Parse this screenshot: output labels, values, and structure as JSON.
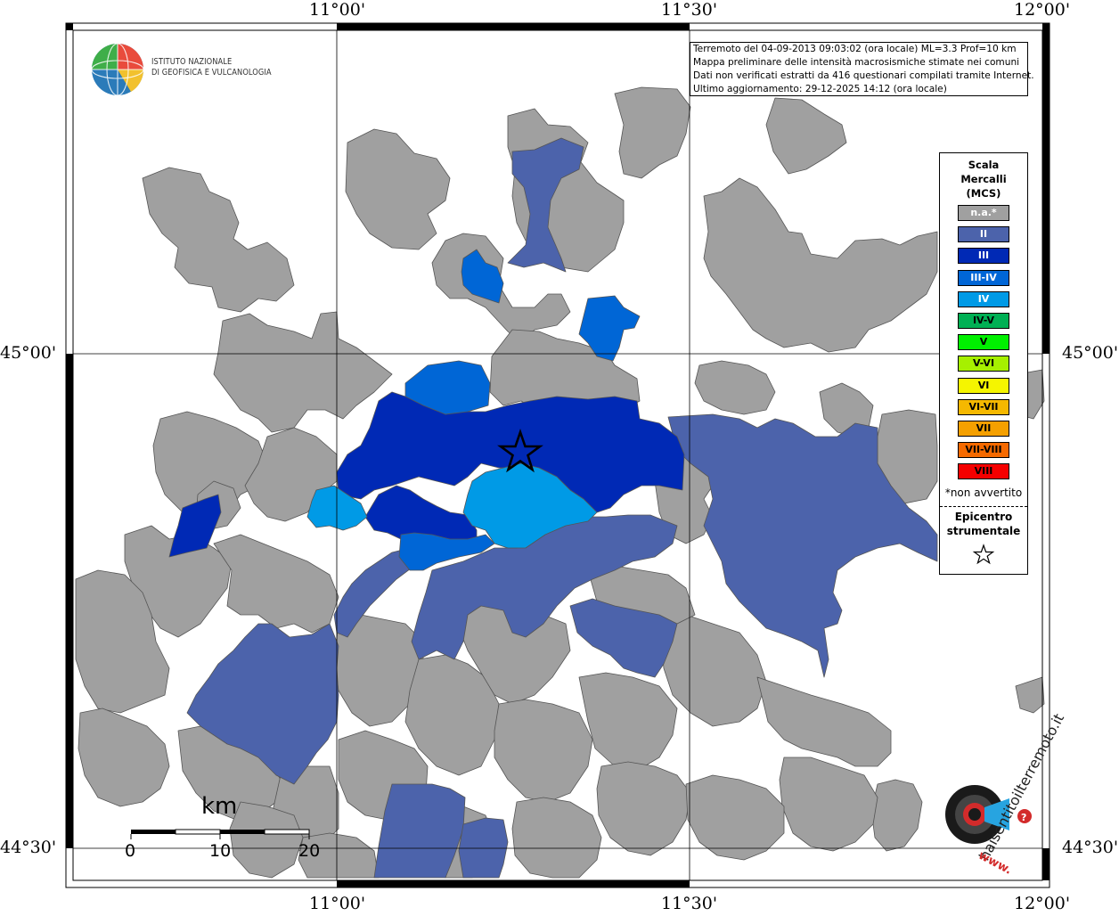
{
  "coords": {
    "top": [
      "11°00'",
      "11°30'",
      "12°00'"
    ],
    "bottom": [
      "11°00'",
      "11°30'",
      "12°00'"
    ],
    "left": [
      "45°00'",
      "44°30'"
    ],
    "right": [
      "45°00'",
      "44°30'"
    ]
  },
  "header": {
    "logo_line1": "ISTITUTO NAZIONALE",
    "logo_line2": "DI GEOFISICA E VULCANOLOGIA",
    "info": [
      "Terremoto del 04-09-2013 09:03:02 (ora locale) ML=3.3 Prof=10 km",
      "Mappa preliminare delle intensità macrosismiche stimate nei comuni",
      "Dati non verificati estratti da 416 questionari compilati tramite Internet.",
      "Ultimo aggiornamento: 29-12-2025 14:12 (ora locale)"
    ]
  },
  "legend": {
    "title1": "Scala",
    "title2": "Mercalli",
    "title3": "(MCS)",
    "items": [
      {
        "label": "n.a.*",
        "color": "#a0a0a0",
        "text": "#ffffff"
      },
      {
        "label": "II",
        "color": "#4c63ab",
        "text": "#ffffff"
      },
      {
        "label": "III",
        "color": "#0029b5",
        "text": "#ffffff"
      },
      {
        "label": "III-IV",
        "color": "#0066d6",
        "text": "#ffffff"
      },
      {
        "label": "IV",
        "color": "#009ae6",
        "text": "#ffffff"
      },
      {
        "label": "IV-V",
        "color": "#00b054",
        "text": "#000000"
      },
      {
        "label": "V",
        "color": "#00f000",
        "text": "#000000"
      },
      {
        "label": "V-VI",
        "color": "#a6f000",
        "text": "#000000"
      },
      {
        "label": "VI",
        "color": "#f5f500",
        "text": "#000000"
      },
      {
        "label": "VI-VII",
        "color": "#f5b800",
        "text": "#000000"
      },
      {
        "label": "VII",
        "color": "#f5a000",
        "text": "#000000"
      },
      {
        "label": "VII-VIII",
        "color": "#f56a00",
        "text": "#000000"
      },
      {
        "label": "VIII",
        "color": "#f50000",
        "text": "#000000"
      }
    ],
    "note": "*non avvertito",
    "epi1": "Epicentro",
    "epi2": "strumentale"
  },
  "scalebar": {
    "title": "km",
    "ticks": [
      "0",
      "10",
      "20"
    ]
  },
  "watermark": {
    "text": "haisentitoilterremoto.it",
    "url": "www."
  },
  "colors": {
    "na": "#a0a0a0",
    "ii": "#4c63ab",
    "iii": "#0029b5",
    "iii_iv": "#0066d6",
    "iv": "#009ae6",
    "border": "#555555"
  }
}
